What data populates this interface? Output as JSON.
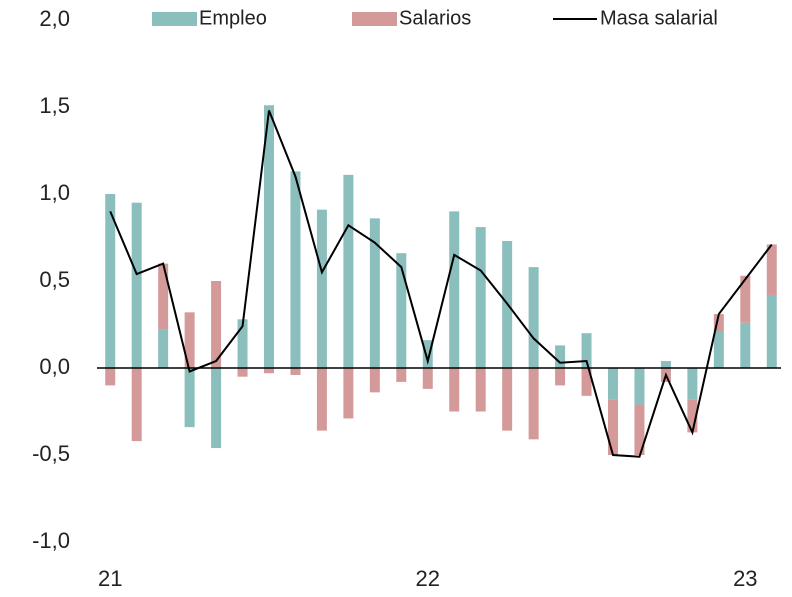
{
  "chart_data": {
    "type": "bar",
    "categories": [
      "21",
      null,
      null,
      null,
      null,
      null,
      null,
      null,
      null,
      null,
      null,
      null,
      "22",
      null,
      null,
      null,
      null,
      null,
      null,
      null,
      null,
      null,
      null,
      null,
      "23",
      null
    ],
    "series": [
      {
        "name": "Empleo",
        "color": "#8bbfbe",
        "values": [
          1.0,
          0.95,
          0.22,
          -0.34,
          -0.46,
          0.28,
          1.51,
          1.13,
          0.91,
          1.11,
          0.86,
          0.66,
          0.16,
          0.9,
          0.81,
          0.73,
          0.58,
          0.13,
          0.2,
          -0.18,
          -0.21,
          0.04,
          -0.18,
          0.21,
          0.26,
          0.42
        ]
      },
      {
        "name": "Salarios",
        "color": "#d49a9a",
        "values": [
          -0.1,
          -0.42,
          0.38,
          0.32,
          0.5,
          -0.05,
          -0.03,
          -0.04,
          -0.36,
          -0.29,
          -0.14,
          -0.08,
          -0.12,
          -0.25,
          -0.25,
          -0.36,
          -0.41,
          -0.1,
          -0.16,
          -0.32,
          -0.29,
          -0.08,
          -0.19,
          0.1,
          0.27,
          0.29
        ]
      },
      {
        "name": "Masa salarial",
        "color": "#000000",
        "type": "line",
        "values": [
          0.9,
          0.54,
          0.6,
          -0.02,
          0.04,
          0.24,
          1.48,
          1.1,
          0.55,
          0.82,
          0.72,
          0.58,
          0.04,
          0.65,
          0.56,
          0.37,
          0.17,
          0.03,
          0.04,
          -0.5,
          -0.51,
          -0.04,
          -0.37,
          0.31,
          0.51,
          0.71
        ]
      }
    ],
    "stacked": true,
    "ylim": [
      -1.0,
      2.0
    ],
    "yticks": [
      {
        "value": -1.0,
        "label": "-1,0"
      },
      {
        "value": -0.5,
        "label": "-0,5"
      },
      {
        "value": 0.0,
        "label": "0,0"
      },
      {
        "value": 0.5,
        "label": "0,5"
      },
      {
        "value": 1.0,
        "label": "1,0"
      },
      {
        "value": 1.5,
        "label": "1,5"
      },
      {
        "value": 2.0,
        "label": "2,0"
      }
    ],
    "legend": "top",
    "grid": false
  }
}
